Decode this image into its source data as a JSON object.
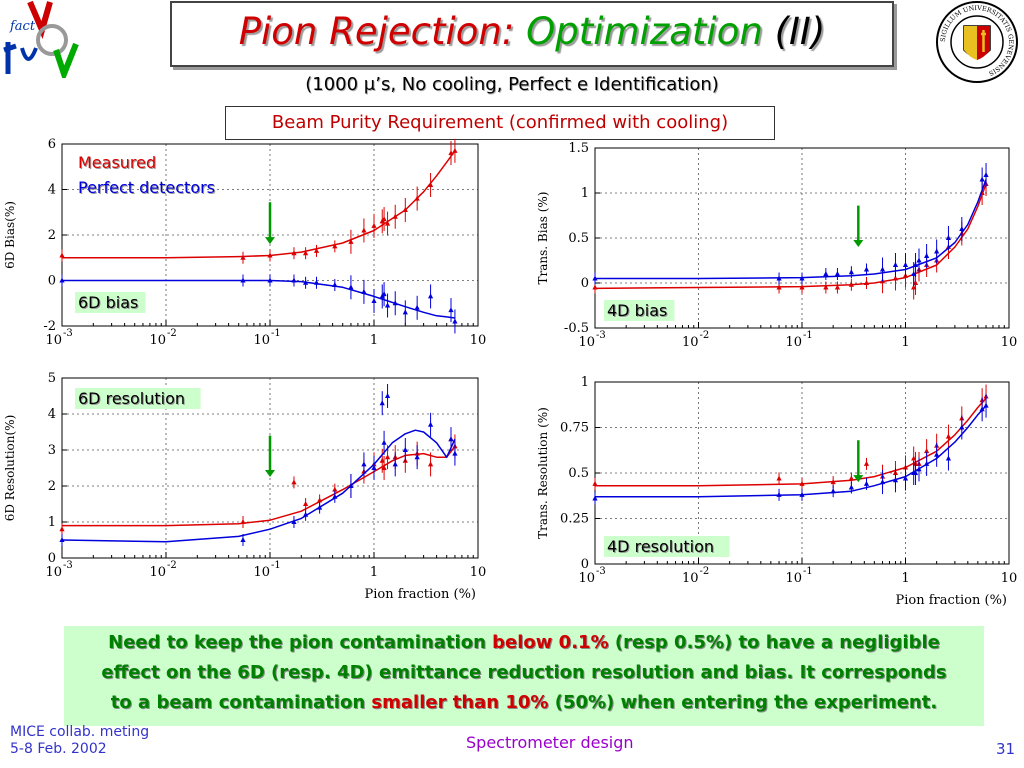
{
  "slide": {
    "title": {
      "part1": "Pion Rejection: ",
      "part2": "Optimization",
      "part3": " (II)"
    },
    "subtitle": "(1000 μ’s, No cooling, Perfect e Identification)",
    "requirement": "Beam Purity Requirement (confirmed with cooling)",
    "conclusion": {
      "line1": {
        "a": "Need to keep the pion contamination ",
        "b": "below 0.1%",
        "c": " (resp 0.5%) to have a negligible"
      },
      "line2": "effect on the 6D (resp. 4D) emittance reduction resolution and bias. It corresponds",
      "line3": {
        "a": "to a beam  contamination ",
        "b": "smaller than 10%",
        "c": " (50%) when entering the experiment."
      }
    },
    "footer": {
      "left_line1": "MICE collab. meting",
      "left_line2": "5-8 Feb. 2002",
      "center": "Spectrometer design",
      "page": "31"
    },
    "logos": {
      "left": "factor-nu-logo",
      "right": "universite-de-geneve-seal",
      "left_text": "fact",
      "right_ring_text": "SIGILLUM UNIVERSITATIS GENEVENSIS"
    }
  },
  "colors": {
    "measured": "#dd0000",
    "perfect": "#0000dd",
    "arrow": "#009900",
    "title_red": "#d00000",
    "title_green": "#00a000",
    "conclusion_bg": "#ccffcc",
    "conclusion_text": "#008000"
  },
  "legend": {
    "measured": "Measured",
    "perfect": "Perfect detectors"
  },
  "x_ticks": [
    {
      "base": "10",
      "exp": "-3",
      "value": 0.001
    },
    {
      "base": "10",
      "exp": "-2",
      "value": 0.01
    },
    {
      "base": "10",
      "exp": "-1",
      "value": 0.1
    },
    {
      "base": "1",
      "exp": "",
      "value": 1
    },
    {
      "base": "10",
      "exp": "",
      "value": 10
    }
  ],
  "chart_data": [
    {
      "id": "6d-bias",
      "type": "scatter",
      "label": "6D bias",
      "ylabel": "6D Bias(%)",
      "xlabel": "",
      "xscale": "log",
      "xlim": [
        0.001,
        10
      ],
      "ylim": [
        -2,
        6
      ],
      "yticks": [
        -2,
        0,
        2,
        4,
        6
      ],
      "show_legend": true,
      "legend_placement": "top-left",
      "arrow_x": 0.1,
      "series": [
        {
          "name": "Measured",
          "color": "#dd0000",
          "x": [
            0.001,
            0.055,
            0.1,
            0.17,
            0.22,
            0.28,
            0.42,
            0.6,
            0.8,
            1.0,
            1.2,
            1.25,
            1.35,
            1.6,
            2.0,
            2.6,
            3.5,
            5.5,
            6.0
          ],
          "y": [
            1.1,
            1.0,
            1.1,
            1.2,
            1.2,
            1.3,
            1.5,
            1.7,
            2.2,
            2.4,
            2.6,
            2.7,
            2.5,
            2.8,
            3.1,
            3.6,
            4.2,
            5.6,
            5.7
          ],
          "fit_x": [
            0.001,
            0.01,
            0.05,
            0.1,
            0.2,
            0.5,
            1,
            2,
            3,
            4,
            5,
            6
          ],
          "fit_y": [
            1.0,
            1.0,
            1.05,
            1.1,
            1.25,
            1.65,
            2.2,
            3.1,
            3.9,
            4.6,
            5.2,
            5.7
          ]
        },
        {
          "name": "Perfect detectors",
          "color": "#0000dd",
          "x": [
            0.001,
            0.055,
            0.1,
            0.17,
            0.22,
            0.28,
            0.42,
            0.6,
            0.8,
            1.0,
            1.2,
            1.25,
            1.35,
            1.6,
            2.0,
            2.6,
            3.5,
            5.5,
            6.0
          ],
          "y": [
            0.0,
            0.0,
            0.0,
            0.0,
            -0.1,
            -0.1,
            -0.2,
            -0.3,
            -0.5,
            -0.9,
            -0.7,
            -0.6,
            -1.1,
            -1.0,
            -1.4,
            -1.2,
            -0.7,
            -1.3,
            -1.8
          ],
          "fit_x": [
            0.001,
            0.01,
            0.05,
            0.1,
            0.2,
            0.5,
            1,
            2,
            3,
            4,
            5,
            6
          ],
          "fit_y": [
            0.0,
            0.0,
            0.0,
            0.0,
            -0.05,
            -0.3,
            -0.7,
            -1.15,
            -1.4,
            -1.55,
            -1.6,
            -1.65
          ]
        }
      ]
    },
    {
      "id": "4d-bias",
      "type": "scatter",
      "label": "4D bias",
      "ylabel": "Trans. Bias (%)",
      "xlabel": "",
      "xscale": "log",
      "xlim": [
        0.001,
        10
      ],
      "ylim": [
        -0.5,
        1.5
      ],
      "yticks": [
        -0.5,
        0,
        0.5,
        1,
        1.5
      ],
      "show_legend": false,
      "arrow_x": 0.35,
      "series": [
        {
          "name": "Measured",
          "color": "#dd0000",
          "x": [
            0.001,
            0.06,
            0.1,
            0.17,
            0.22,
            0.3,
            0.42,
            0.6,
            0.8,
            1.0,
            1.2,
            1.25,
            1.35,
            1.6,
            2.0,
            2.6,
            3.5,
            5.5,
            6.0
          ],
          "y": [
            -0.05,
            -0.05,
            -0.05,
            -0.05,
            -0.05,
            -0.02,
            0.0,
            0.02,
            0.05,
            0.08,
            -0.05,
            0.0,
            0.15,
            0.2,
            0.25,
            0.4,
            0.55,
            1.0,
            1.1
          ],
          "fit_x": [
            0.001,
            0.01,
            0.1,
            0.3,
            0.5,
            1,
            2,
            3,
            4,
            5,
            6
          ],
          "fit_y": [
            -0.06,
            -0.05,
            -0.04,
            -0.02,
            0.0,
            0.06,
            0.2,
            0.4,
            0.6,
            0.85,
            1.1
          ]
        },
        {
          "name": "Perfect detectors",
          "color": "#0000dd",
          "x": [
            0.001,
            0.06,
            0.1,
            0.17,
            0.22,
            0.3,
            0.42,
            0.6,
            0.8,
            1.0,
            1.2,
            1.25,
            1.35,
            1.6,
            2.0,
            2.6,
            3.5,
            5.5,
            6.0
          ],
          "y": [
            0.05,
            0.05,
            0.05,
            0.1,
            0.1,
            0.12,
            0.15,
            0.15,
            0.2,
            0.2,
            0.1,
            0.2,
            0.25,
            0.3,
            0.35,
            0.5,
            0.6,
            1.15,
            1.2
          ],
          "fit_x": [
            0.001,
            0.01,
            0.1,
            0.3,
            0.5,
            1,
            2,
            3,
            4,
            5,
            6
          ],
          "fit_y": [
            0.05,
            0.05,
            0.06,
            0.08,
            0.1,
            0.15,
            0.28,
            0.45,
            0.65,
            0.9,
            1.15
          ]
        }
      ]
    },
    {
      "id": "6d-resolution",
      "type": "scatter",
      "label": "6D resolution",
      "ylabel": "6D Resolution(%)",
      "xlabel": "Pion fraction (%)",
      "xscale": "log",
      "xlim": [
        0.001,
        10
      ],
      "ylim": [
        0,
        5
      ],
      "yticks": [
        0,
        1,
        2,
        3,
        4,
        5
      ],
      "show_legend": false,
      "arrow_x": 0.1,
      "series": [
        {
          "name": "Measured",
          "color": "#dd0000",
          "x": [
            0.001,
            0.055,
            0.17,
            0.22,
            0.3,
            0.42,
            0.6,
            0.8,
            1.0,
            1.2,
            1.25,
            1.35,
            1.6,
            2.0,
            2.6,
            3.5,
            5.5,
            6.0
          ],
          "y": [
            0.8,
            1.0,
            2.1,
            1.5,
            1.6,
            1.9,
            2.0,
            2.4,
            2.6,
            2.7,
            2.5,
            2.8,
            2.8,
            2.7,
            2.9,
            2.6,
            3.3,
            3.1
          ],
          "fit_x": [
            0.001,
            0.01,
            0.05,
            0.1,
            0.2,
            0.5,
            1,
            1.5,
            2,
            3,
            4,
            5,
            6
          ],
          "fit_y": [
            0.9,
            0.9,
            0.95,
            1.05,
            1.3,
            1.9,
            2.4,
            2.7,
            2.85,
            2.9,
            2.8,
            2.8,
            3.1
          ]
        },
        {
          "name": "Perfect detectors",
          "color": "#0000dd",
          "x": [
            0.001,
            0.055,
            0.17,
            0.22,
            0.3,
            0.42,
            0.6,
            0.8,
            1.0,
            1.2,
            1.25,
            1.35,
            1.6,
            2.0,
            2.6,
            3.5,
            5.5,
            6.0
          ],
          "y": [
            0.5,
            0.5,
            1.0,
            1.2,
            1.4,
            1.7,
            2.0,
            2.6,
            2.5,
            4.3,
            3.2,
            4.5,
            2.6,
            3.0,
            2.8,
            3.7,
            3.3,
            2.9
          ],
          "fit_x": [
            0.001,
            0.01,
            0.05,
            0.1,
            0.2,
            0.5,
            1,
            1.5,
            2,
            2.5,
            3,
            4,
            5,
            6
          ],
          "fit_y": [
            0.5,
            0.45,
            0.6,
            0.8,
            1.1,
            1.8,
            2.6,
            3.2,
            3.45,
            3.55,
            3.5,
            3.2,
            2.8,
            3.3
          ]
        }
      ]
    },
    {
      "id": "4d-resolution",
      "type": "scatter",
      "label": "4D resolution",
      "ylabel": "Trans. Resolution (%)",
      "xlabel": "Pion fraction (%)",
      "xscale": "log",
      "xlim": [
        0.001,
        10
      ],
      "ylim": [
        0,
        1
      ],
      "yticks": [
        0,
        0.25,
        0.5,
        0.75,
        1
      ],
      "show_legend": false,
      "arrow_x": 0.35,
      "series": [
        {
          "name": "Measured",
          "color": "#dd0000",
          "x": [
            0.001,
            0.06,
            0.1,
            0.2,
            0.3,
            0.42,
            0.6,
            0.8,
            1.0,
            1.2,
            1.25,
            1.35,
            1.6,
            2.0,
            2.6,
            3.5,
            5.5,
            6.0
          ],
          "y": [
            0.44,
            0.47,
            0.44,
            0.45,
            0.47,
            0.55,
            0.48,
            0.5,
            0.53,
            0.58,
            0.55,
            0.55,
            0.62,
            0.65,
            0.7,
            0.8,
            0.9,
            0.92
          ],
          "fit_x": [
            0.001,
            0.01,
            0.1,
            0.3,
            0.5,
            1,
            2,
            3,
            4,
            5,
            6
          ],
          "fit_y": [
            0.43,
            0.43,
            0.44,
            0.46,
            0.48,
            0.53,
            0.62,
            0.71,
            0.79,
            0.86,
            0.91
          ]
        },
        {
          "name": "Perfect detectors",
          "color": "#0000dd",
          "x": [
            0.001,
            0.06,
            0.1,
            0.2,
            0.3,
            0.42,
            0.6,
            0.8,
            1.0,
            1.2,
            1.25,
            1.35,
            1.6,
            2.0,
            2.6,
            3.5,
            5.5,
            6.0
          ],
          "y": [
            0.36,
            0.38,
            0.38,
            0.4,
            0.42,
            0.44,
            0.45,
            0.46,
            0.47,
            0.5,
            0.5,
            0.52,
            0.55,
            0.6,
            0.58,
            0.75,
            0.85,
            0.87
          ],
          "fit_x": [
            0.001,
            0.01,
            0.1,
            0.3,
            0.5,
            1,
            2,
            3,
            4,
            5,
            6
          ],
          "fit_y": [
            0.37,
            0.37,
            0.38,
            0.4,
            0.43,
            0.48,
            0.58,
            0.67,
            0.75,
            0.82,
            0.87
          ]
        }
      ]
    }
  ]
}
